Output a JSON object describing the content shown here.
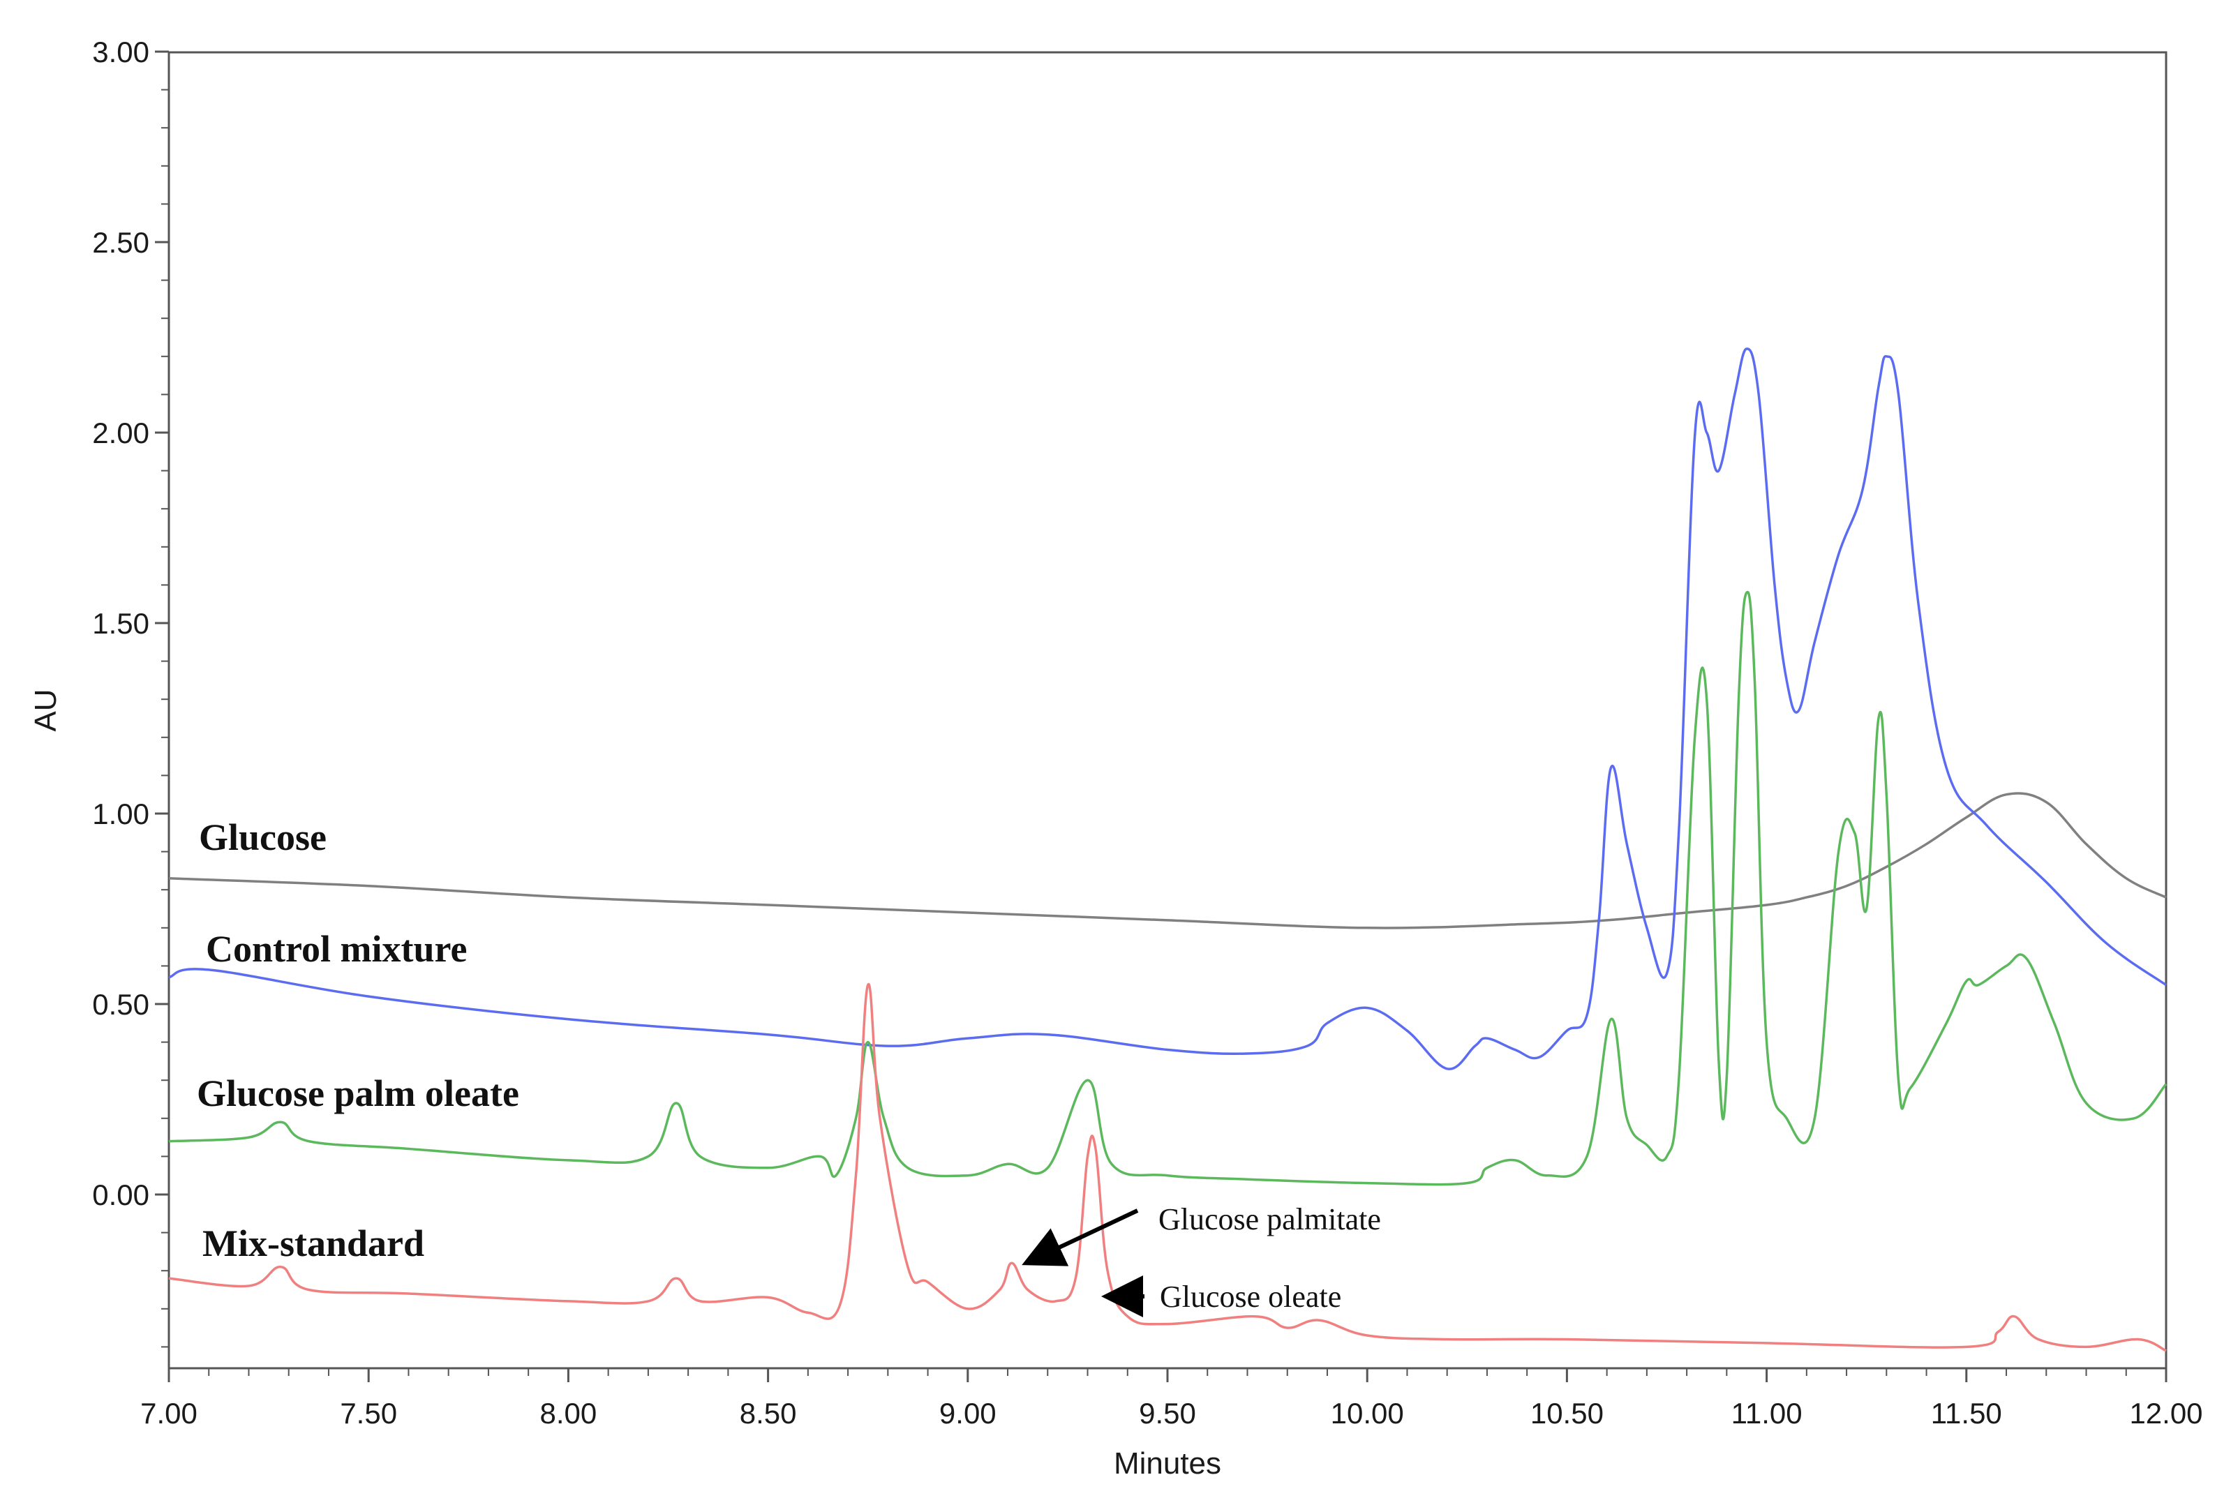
{
  "chart_data": {
    "type": "line",
    "xlabel": "Minutes",
    "ylabel": "AU",
    "xlim": [
      7.0,
      12.0
    ],
    "ylim": [
      -0.45,
      3.0
    ],
    "xticks": [
      "7.00",
      "7.50",
      "8.00",
      "8.50",
      "9.00",
      "9.50",
      "10.00",
      "10.50",
      "11.00",
      "11.50",
      "12.00"
    ],
    "yticks": [
      "0.00",
      "0.50",
      "1.00",
      "1.50",
      "2.00",
      "2.50",
      "3.00"
    ],
    "xtick_values": [
      7.0,
      7.5,
      8.0,
      8.5,
      9.0,
      9.5,
      10.0,
      10.5,
      11.0,
      11.5,
      12.0
    ],
    "ytick_values": [
      0.0,
      0.5,
      1.0,
      1.5,
      2.0,
      2.5,
      3.0
    ],
    "grid": false,
    "series": [
      {
        "name": "Glucose",
        "color": "#808080",
        "x": [
          7.0,
          7.5,
          8.0,
          8.5,
          9.0,
          9.5,
          10.0,
          10.4,
          10.6,
          10.8,
          11.0,
          11.1,
          11.2,
          11.3,
          11.4,
          11.5,
          11.6,
          11.7,
          11.8,
          11.9,
          12.0
        ],
        "y": [
          0.83,
          0.81,
          0.78,
          0.76,
          0.74,
          0.72,
          0.7,
          0.71,
          0.72,
          0.74,
          0.76,
          0.78,
          0.81,
          0.86,
          0.92,
          0.99,
          1.05,
          1.03,
          0.92,
          0.83,
          0.78
        ]
      },
      {
        "name": "Control mixture",
        "color": "#5b6cf0",
        "x": [
          7.0,
          7.1,
          7.5,
          8.0,
          8.5,
          8.8,
          9.0,
          9.2,
          9.5,
          9.7,
          9.85,
          9.9,
          10.0,
          10.1,
          10.2,
          10.27,
          10.3,
          10.37,
          10.43,
          10.5,
          10.55,
          10.58,
          10.61,
          10.65,
          10.7,
          10.75,
          10.78,
          10.82,
          10.85,
          10.88,
          10.92,
          10.95,
          10.98,
          11.02,
          11.05,
          11.08,
          11.12,
          11.18,
          11.24,
          11.28,
          11.3,
          11.33,
          11.38,
          11.45,
          11.55,
          11.7,
          11.85,
          12.0
        ],
        "y": [
          0.57,
          0.59,
          0.52,
          0.46,
          0.42,
          0.39,
          0.41,
          0.42,
          0.38,
          0.37,
          0.39,
          0.45,
          0.49,
          0.43,
          0.33,
          0.39,
          0.41,
          0.38,
          0.36,
          0.43,
          0.47,
          0.72,
          1.12,
          0.92,
          0.7,
          0.58,
          0.95,
          1.99,
          2.0,
          1.9,
          2.1,
          2.22,
          2.1,
          1.6,
          1.35,
          1.27,
          1.45,
          1.68,
          1.85,
          2.12,
          2.2,
          2.1,
          1.55,
          1.12,
          0.97,
          0.82,
          0.66,
          0.55
        ]
      },
      {
        "name": "Glucose palm oleate",
        "color": "#5cb85c",
        "x": [
          7.0,
          7.2,
          7.28,
          7.35,
          7.6,
          8.0,
          8.2,
          8.27,
          8.33,
          8.5,
          8.63,
          8.67,
          8.72,
          8.75,
          8.79,
          8.85,
          9.0,
          9.1,
          9.2,
          9.3,
          9.36,
          9.5,
          9.7,
          10.0,
          10.25,
          10.3,
          10.37,
          10.45,
          10.55,
          10.61,
          10.65,
          10.7,
          10.75,
          10.78,
          10.82,
          10.85,
          10.88,
          10.9,
          10.93,
          10.95,
          10.97,
          11.0,
          11.05,
          11.12,
          11.18,
          11.22,
          11.25,
          11.28,
          11.3,
          11.33,
          11.36,
          11.45,
          11.5,
          11.53,
          11.6,
          11.65,
          11.72,
          11.8,
          11.92,
          12.0
        ],
        "y": [
          0.14,
          0.15,
          0.19,
          0.14,
          0.12,
          0.09,
          0.1,
          0.24,
          0.1,
          0.07,
          0.1,
          0.05,
          0.2,
          0.4,
          0.2,
          0.07,
          0.05,
          0.08,
          0.07,
          0.3,
          0.08,
          0.05,
          0.04,
          0.03,
          0.03,
          0.07,
          0.09,
          0.05,
          0.1,
          0.46,
          0.2,
          0.13,
          0.1,
          0.3,
          1.2,
          1.3,
          0.35,
          0.31,
          1.3,
          1.58,
          1.35,
          0.4,
          0.2,
          0.2,
          0.9,
          0.95,
          0.75,
          1.25,
          1.05,
          0.3,
          0.28,
          0.45,
          0.56,
          0.55,
          0.6,
          0.62,
          0.45,
          0.24,
          0.2,
          0.29
        ]
      },
      {
        "name": "Mix-standard",
        "color": "#f08080",
        "x": [
          7.0,
          7.2,
          7.28,
          7.35,
          7.6,
          8.0,
          8.2,
          8.27,
          8.33,
          8.5,
          8.6,
          8.68,
          8.72,
          8.75,
          8.78,
          8.85,
          8.9,
          9.0,
          9.08,
          9.11,
          9.15,
          9.22,
          9.27,
          9.3,
          9.32,
          9.35,
          9.4,
          9.5,
          9.72,
          9.8,
          9.88,
          10.0,
          10.2,
          10.5,
          11.0,
          11.5,
          11.58,
          11.62,
          11.68,
          11.8,
          11.93,
          12.0
        ],
        "y": [
          -0.22,
          -0.24,
          -0.19,
          -0.25,
          -0.26,
          -0.28,
          -0.28,
          -0.22,
          -0.28,
          -0.27,
          -0.31,
          -0.29,
          0.05,
          0.55,
          0.2,
          -0.19,
          -0.23,
          -0.3,
          -0.25,
          -0.18,
          -0.25,
          -0.28,
          -0.22,
          0.1,
          0.12,
          -0.2,
          -0.32,
          -0.34,
          -0.32,
          -0.35,
          -0.33,
          -0.37,
          -0.38,
          -0.38,
          -0.39,
          -0.4,
          -0.36,
          -0.32,
          -0.38,
          -0.4,
          -0.38,
          -0.41
        ]
      }
    ],
    "series_labels": [
      "Glucose",
      "Control mixture",
      "Glucose palm oleate",
      "Mix-standard"
    ],
    "annotations": [
      {
        "text": "Glucose palmitate",
        "target_x": 9.13,
        "target_y": -0.17
      },
      {
        "text": "Glucose oleate",
        "target_x": 9.35,
        "target_y": -0.26
      }
    ]
  }
}
